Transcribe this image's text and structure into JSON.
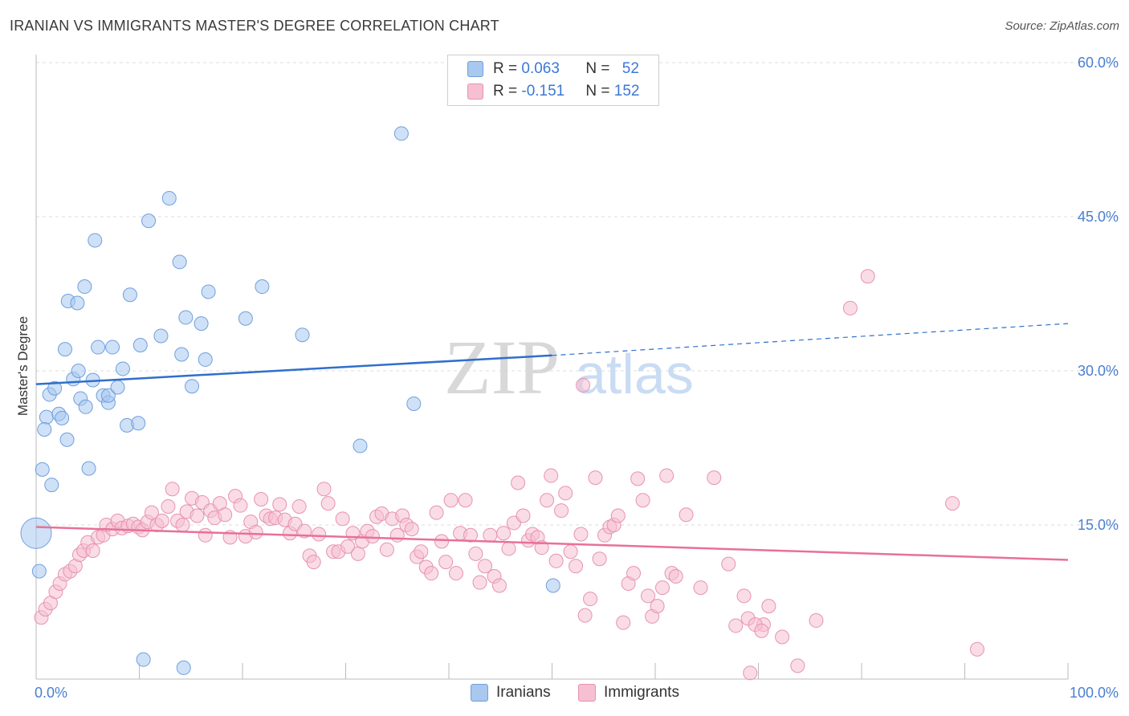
{
  "title": "IRANIAN VS IMMIGRANTS MASTER'S DEGREE CORRELATION CHART",
  "source": "Source: ZipAtlas.com",
  "watermark": {
    "zip": "ZIP",
    "atlas": "atlas"
  },
  "legend": {
    "rows": [
      {
        "r_label": "R = ",
        "r_value": "0.063",
        "n_label": "N = ",
        "n_value": "52",
        "color": "#a8c8f0",
        "border": "#6f9fde"
      },
      {
        "r_label": "R = ",
        "r_value": "-0.151",
        "n_label": "N = ",
        "n_value": "152",
        "color": "#f6bfd2",
        "border": "#e693b0"
      }
    ]
  },
  "bottom_legend": [
    {
      "label": "Iranians",
      "color": "#a8c8f0",
      "border": "#6f9fde"
    },
    {
      "label": "Immigrants",
      "color": "#f6bfd2",
      "border": "#e693b0"
    }
  ],
  "chart_data": {
    "type": "scatter",
    "title": "IRANIAN VS IMMIGRANTS MASTER'S DEGREE CORRELATION CHART",
    "xlabel": "",
    "ylabel": "Master's Degree",
    "xlim": [
      0,
      100
    ],
    "ylim": [
      0,
      60
    ],
    "x_tick_labels": [
      "0.0%",
      "100.0%"
    ],
    "y_ticks": [
      15,
      30,
      45,
      60
    ],
    "y_tick_labels": [
      "15.0%",
      "30.0%",
      "45.0%",
      "60.0%"
    ],
    "grid": true,
    "legend_position": "top-center",
    "series": [
      {
        "name": "Iranians",
        "color": "#6f9fde",
        "fill": "#a8c8f0",
        "trend": {
          "x": [
            0,
            50
          ],
          "y": [
            28.7,
            31.5
          ],
          "extended_to": [
            100,
            34.6
          ],
          "color": "#2f6fcc"
        },
        "points": [
          [
            0.0,
            14.2
          ],
          [
            0.6,
            20.4
          ],
          [
            1.5,
            18.9
          ],
          [
            1.0,
            25.5
          ],
          [
            0.8,
            24.3
          ],
          [
            1.3,
            27.7
          ],
          [
            1.8,
            28.3
          ],
          [
            2.2,
            25.8
          ],
          [
            2.5,
            25.4
          ],
          [
            3.0,
            23.3
          ],
          [
            2.8,
            32.1
          ],
          [
            3.1,
            36.8
          ],
          [
            3.6,
            29.2
          ],
          [
            4.0,
            36.6
          ],
          [
            4.1,
            30.0
          ],
          [
            4.3,
            27.3
          ],
          [
            4.7,
            38.2
          ],
          [
            4.8,
            26.5
          ],
          [
            5.1,
            20.5
          ],
          [
            5.5,
            29.1
          ],
          [
            5.7,
            42.7
          ],
          [
            6.0,
            32.3
          ],
          [
            6.5,
            27.6
          ],
          [
            7.0,
            26.9
          ],
          [
            7.0,
            27.6
          ],
          [
            7.4,
            32.3
          ],
          [
            7.9,
            28.4
          ],
          [
            8.4,
            30.2
          ],
          [
            8.8,
            24.7
          ],
          [
            9.1,
            37.4
          ],
          [
            9.9,
            24.9
          ],
          [
            10.1,
            32.5
          ],
          [
            10.4,
            1.9
          ],
          [
            10.9,
            44.6
          ],
          [
            12.1,
            33.4
          ],
          [
            12.9,
            46.8
          ],
          [
            13.9,
            40.6
          ],
          [
            14.1,
            31.6
          ],
          [
            14.3,
            1.1
          ],
          [
            14.5,
            35.2
          ],
          [
            15.1,
            28.5
          ],
          [
            16.0,
            34.6
          ],
          [
            16.4,
            31.1
          ],
          [
            16.7,
            37.7
          ],
          [
            20.3,
            35.1
          ],
          [
            21.9,
            38.2
          ],
          [
            25.8,
            33.5
          ],
          [
            31.4,
            22.7
          ],
          [
            35.4,
            53.1
          ],
          [
            36.6,
            26.8
          ],
          [
            50.1,
            9.1
          ],
          [
            0.3,
            10.5
          ]
        ]
      },
      {
        "name": "Immigrants",
        "color": "#e693b0",
        "fill": "#f6bfd2",
        "trend": {
          "x": [
            0,
            100
          ],
          "y": [
            14.8,
            11.6
          ],
          "color": "#e8709a"
        },
        "points": [
          [
            0.5,
            6.0
          ],
          [
            0.9,
            6.8
          ],
          [
            1.4,
            7.4
          ],
          [
            1.9,
            8.5
          ],
          [
            2.3,
            9.3
          ],
          [
            2.8,
            10.2
          ],
          [
            3.3,
            10.5
          ],
          [
            3.8,
            11.0
          ],
          [
            4.2,
            12.1
          ],
          [
            4.6,
            12.5
          ],
          [
            5.0,
            13.3
          ],
          [
            5.5,
            12.5
          ],
          [
            6.0,
            13.8
          ],
          [
            6.5,
            14.0
          ],
          [
            6.8,
            15.0
          ],
          [
            7.4,
            14.6
          ],
          [
            7.9,
            15.4
          ],
          [
            8.3,
            14.7
          ],
          [
            8.9,
            14.9
          ],
          [
            9.4,
            15.1
          ],
          [
            9.9,
            14.8
          ],
          [
            10.3,
            14.5
          ],
          [
            10.8,
            15.3
          ],
          [
            11.2,
            16.2
          ],
          [
            11.7,
            15.0
          ],
          [
            12.2,
            15.4
          ],
          [
            12.8,
            16.8
          ],
          [
            13.2,
            18.5
          ],
          [
            13.7,
            15.4
          ],
          [
            14.2,
            15.0
          ],
          [
            14.6,
            16.3
          ],
          [
            15.1,
            17.6
          ],
          [
            15.6,
            15.9
          ],
          [
            16.1,
            17.2
          ],
          [
            16.4,
            14.0
          ],
          [
            16.9,
            16.4
          ],
          [
            17.3,
            15.7
          ],
          [
            17.8,
            17.1
          ],
          [
            18.3,
            16.0
          ],
          [
            18.8,
            13.8
          ],
          [
            19.3,
            17.8
          ],
          [
            19.8,
            16.9
          ],
          [
            20.3,
            13.9
          ],
          [
            20.8,
            15.3
          ],
          [
            21.3,
            14.3
          ],
          [
            21.8,
            17.5
          ],
          [
            22.3,
            15.9
          ],
          [
            22.7,
            15.6
          ],
          [
            23.2,
            15.7
          ],
          [
            23.6,
            17.0
          ],
          [
            24.1,
            15.5
          ],
          [
            24.6,
            14.2
          ],
          [
            25.1,
            15.1
          ],
          [
            25.5,
            16.8
          ],
          [
            26.0,
            14.4
          ],
          [
            26.5,
            12.0
          ],
          [
            26.9,
            11.4
          ],
          [
            27.4,
            14.1
          ],
          [
            27.9,
            18.5
          ],
          [
            28.3,
            17.1
          ],
          [
            28.8,
            12.4
          ],
          [
            29.3,
            12.4
          ],
          [
            29.7,
            15.6
          ],
          [
            30.2,
            12.9
          ],
          [
            30.7,
            14.2
          ],
          [
            31.2,
            12.2
          ],
          [
            31.6,
            13.4
          ],
          [
            32.1,
            14.4
          ],
          [
            32.6,
            13.9
          ],
          [
            33.0,
            15.8
          ],
          [
            33.5,
            16.1
          ],
          [
            34.0,
            12.6
          ],
          [
            34.5,
            15.6
          ],
          [
            35.0,
            14.0
          ],
          [
            35.5,
            15.9
          ],
          [
            35.9,
            15.0
          ],
          [
            36.4,
            14.6
          ],
          [
            36.9,
            11.9
          ],
          [
            37.3,
            12.4
          ],
          [
            37.8,
            10.9
          ],
          [
            38.3,
            10.3
          ],
          [
            38.8,
            16.2
          ],
          [
            39.3,
            13.4
          ],
          [
            39.7,
            11.4
          ],
          [
            40.2,
            17.4
          ],
          [
            40.7,
            10.3
          ],
          [
            41.1,
            14.2
          ],
          [
            41.6,
            17.4
          ],
          [
            42.1,
            14.0
          ],
          [
            42.6,
            12.2
          ],
          [
            43.0,
            9.4
          ],
          [
            43.5,
            11.0
          ],
          [
            44.0,
            14.0
          ],
          [
            44.4,
            10.0
          ],
          [
            44.9,
            9.1
          ],
          [
            45.3,
            14.2
          ],
          [
            45.8,
            12.7
          ],
          [
            46.3,
            15.2
          ],
          [
            46.7,
            19.1
          ],
          [
            47.2,
            15.9
          ],
          [
            47.7,
            13.5
          ],
          [
            48.1,
            14.1
          ],
          [
            48.6,
            13.8
          ],
          [
            49.0,
            12.8
          ],
          [
            49.5,
            17.4
          ],
          [
            49.9,
            19.8
          ],
          [
            50.4,
            11.5
          ],
          [
            50.9,
            16.4
          ],
          [
            51.3,
            18.1
          ],
          [
            51.8,
            12.4
          ],
          [
            52.3,
            11.0
          ],
          [
            52.8,
            14.1
          ],
          [
            53.2,
            6.2
          ],
          [
            53.7,
            7.8
          ],
          [
            54.2,
            19.6
          ],
          [
            54.6,
            11.7
          ],
          [
            55.1,
            14.0
          ],
          [
            55.6,
            14.8
          ],
          [
            56.0,
            15.0
          ],
          [
            56.4,
            15.9
          ],
          [
            56.9,
            5.5
          ],
          [
            57.4,
            9.3
          ],
          [
            57.9,
            10.3
          ],
          [
            58.3,
            19.5
          ],
          [
            58.8,
            17.4
          ],
          [
            59.3,
            8.1
          ],
          [
            59.7,
            6.1
          ],
          [
            60.2,
            7.1
          ],
          [
            60.7,
            8.9
          ],
          [
            61.1,
            19.8
          ],
          [
            61.6,
            10.3
          ],
          [
            62.0,
            10.0
          ],
          [
            63.0,
            16.0
          ],
          [
            64.4,
            8.9
          ],
          [
            65.7,
            19.6
          ],
          [
            67.1,
            11.2
          ],
          [
            69.0,
            5.9
          ],
          [
            70.5,
            5.3
          ],
          [
            71.0,
            7.1
          ],
          [
            72.3,
            4.1
          ],
          [
            73.8,
            1.3
          ],
          [
            75.6,
            5.7
          ],
          [
            78.9,
            36.1
          ],
          [
            80.6,
            39.2
          ],
          [
            88.8,
            17.1
          ],
          [
            91.2,
            2.9
          ],
          [
            53.0,
            28.6
          ],
          [
            69.7,
            5.3
          ],
          [
            70.3,
            4.7
          ],
          [
            68.6,
            8.1
          ],
          [
            67.8,
            5.2
          ],
          [
            69.2,
            0.6
          ]
        ]
      }
    ]
  }
}
